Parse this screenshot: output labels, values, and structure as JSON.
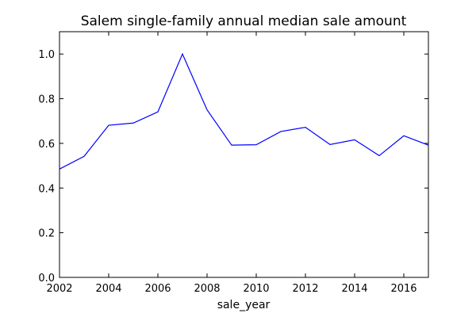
{
  "chart_data": {
    "type": "line",
    "title": "Salem single-family annual median sale amount",
    "xlabel": "sale_year",
    "ylabel": "",
    "xlim": [
      2002,
      2017
    ],
    "ylim": [
      0.0,
      1.1
    ],
    "xticks": [
      2002,
      2004,
      2006,
      2008,
      2010,
      2012,
      2014,
      2016
    ],
    "xtick_labels": [
      "2002",
      "2004",
      "2006",
      "2008",
      "2010",
      "2012",
      "2014",
      "2016"
    ],
    "yticks": [
      0.0,
      0.2,
      0.4,
      0.6,
      0.8,
      1.0
    ],
    "ytick_labels": [
      "0.0",
      "0.2",
      "0.4",
      "0.6",
      "0.8",
      "1.0"
    ],
    "grid": false,
    "series": [
      {
        "color": "#0000ff",
        "x": [
          2002,
          2003,
          2004,
          2005,
          2006,
          2007,
          2008,
          2009,
          2010,
          2011,
          2012,
          2013,
          2014,
          2015,
          2016,
          2017
        ],
        "y": [
          0.485,
          0.542,
          0.681,
          0.691,
          0.741,
          1.0,
          0.75,
          0.592,
          0.594,
          0.653,
          0.672,
          0.595,
          0.616,
          0.545,
          0.634,
          0.592
        ]
      }
    ]
  }
}
